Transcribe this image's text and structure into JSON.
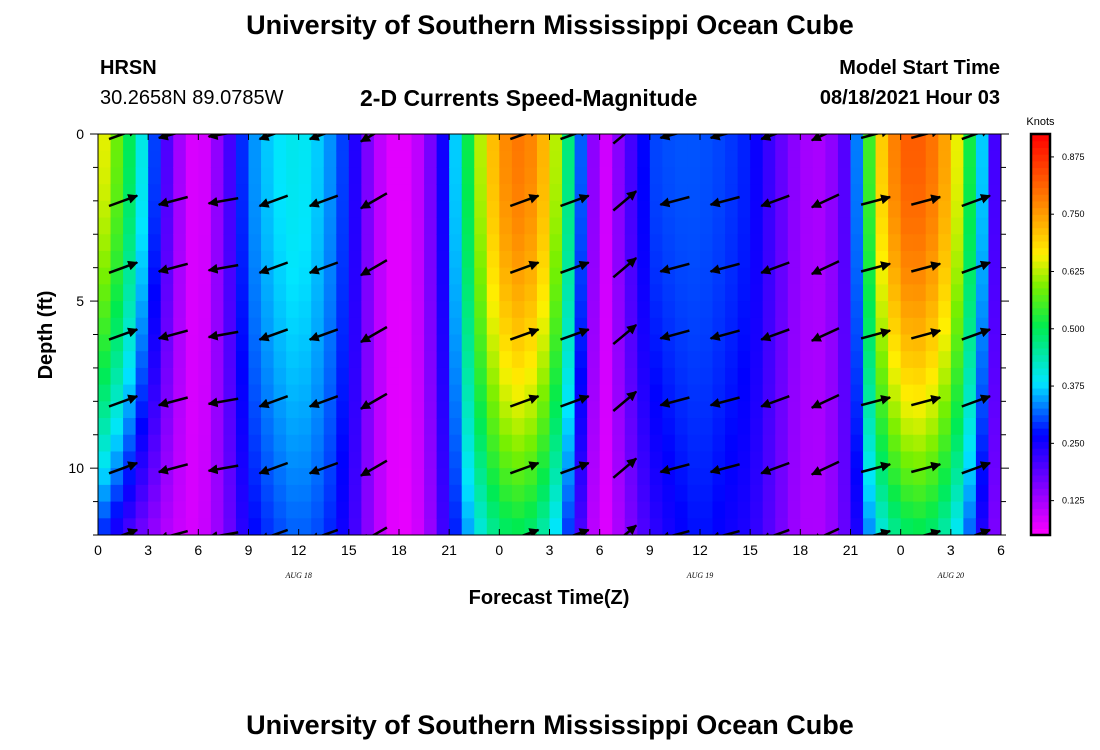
{
  "header": {
    "title_top": "University of Southern Mississippi Ocean Cube",
    "title_bottom": "University of Southern Mississippi Ocean Cube",
    "station_label": "HRSN",
    "coordinates": "30.2658N  89.0785W",
    "subtitle": "2-D Currents Speed-Magnitude",
    "model_start_label": "Model Start Time",
    "model_start_value": "08/18/2021 Hour 03"
  },
  "chart_data": {
    "type": "heatmap",
    "title": "2-D Currents Speed-Magnitude",
    "xlabel": "Forecast Time(Z)",
    "ylabel": "Depth (ft)",
    "x_range_hours": [
      0,
      54
    ],
    "y_range_ft": [
      0,
      12
    ],
    "x_tick_labels": [
      "0",
      "3",
      "6",
      "9",
      "12",
      "15",
      "18",
      "21",
      "0",
      "3",
      "6",
      "9",
      "12",
      "15",
      "18",
      "21",
      "0",
      "3",
      "6"
    ],
    "x_tick_hours": [
      0,
      3,
      6,
      9,
      12,
      15,
      18,
      21,
      24,
      27,
      30,
      33,
      36,
      39,
      42,
      45,
      48,
      51,
      54
    ],
    "y_tick_labels": [
      "0",
      "5",
      "10"
    ],
    "y_tick_values": [
      0,
      5,
      10
    ],
    "date_labels": [
      {
        "text": "AUG 18",
        "hour": 12
      },
      {
        "text": "AUG 19",
        "hour": 36
      },
      {
        "text": "AUG 20",
        "hour": 51
      }
    ],
    "colorbar": {
      "units": "Knots",
      "min": 0.05,
      "max": 0.925,
      "ticks": [
        0.875,
        0.75,
        0.625,
        0.5,
        0.375,
        0.25,
        0.125
      ],
      "tick_labels": [
        "0.875",
        "0.750",
        "0.625",
        "0.500",
        "0.375",
        "0.250",
        "0.125"
      ]
    },
    "speed_profile": {
      "hours": [
        0,
        1.5,
        3,
        4.5,
        6,
        7.5,
        9,
        10.5,
        12,
        13.5,
        15,
        16.5,
        18,
        19.5,
        21,
        22.5,
        24,
        25.5,
        27,
        28.5,
        30,
        31.5,
        33,
        34.5,
        36,
        37.5,
        39,
        40.5,
        42,
        43.5,
        45,
        46.5,
        48,
        49.5,
        51,
        52.5,
        54
      ],
      "surface": [
        0.68,
        0.55,
        0.35,
        0.15,
        0.06,
        0.17,
        0.33,
        0.38,
        0.4,
        0.36,
        0.28,
        0.12,
        0.06,
        0.12,
        0.3,
        0.58,
        0.76,
        0.8,
        0.7,
        0.4,
        0.06,
        0.18,
        0.3,
        0.31,
        0.31,
        0.3,
        0.28,
        0.2,
        0.13,
        0.12,
        0.22,
        0.66,
        0.82,
        0.82,
        0.72,
        0.45,
        0.13
      ],
      "bottom": [
        0.3,
        0.22,
        0.15,
        0.1,
        0.08,
        0.15,
        0.26,
        0.3,
        0.32,
        0.3,
        0.24,
        0.12,
        0.06,
        0.1,
        0.25,
        0.38,
        0.48,
        0.5,
        0.42,
        0.25,
        0.06,
        0.14,
        0.22,
        0.26,
        0.28,
        0.26,
        0.24,
        0.18,
        0.12,
        0.12,
        0.2,
        0.38,
        0.48,
        0.5,
        0.42,
        0.28,
        0.12
      ]
    },
    "vectors": {
      "depths_ft": [
        0,
        2,
        4,
        6,
        8,
        10,
        12
      ],
      "hours": [
        1.5,
        4.5,
        7.5,
        10.5,
        13.5,
        16.5,
        25.5,
        28.5,
        31.5,
        34.5,
        37.5,
        40.5,
        43.5,
        46.5,
        49.5,
        52.5
      ],
      "direction_deg": [
        20,
        195,
        190,
        200,
        200,
        210,
        20,
        20,
        40,
        195,
        195,
        200,
        205,
        15,
        15,
        20
      ],
      "length": [
        1,
        1,
        1,
        1,
        1,
        1,
        1,
        1,
        1,
        1,
        1,
        1,
        1,
        1,
        1,
        1
      ]
    }
  }
}
